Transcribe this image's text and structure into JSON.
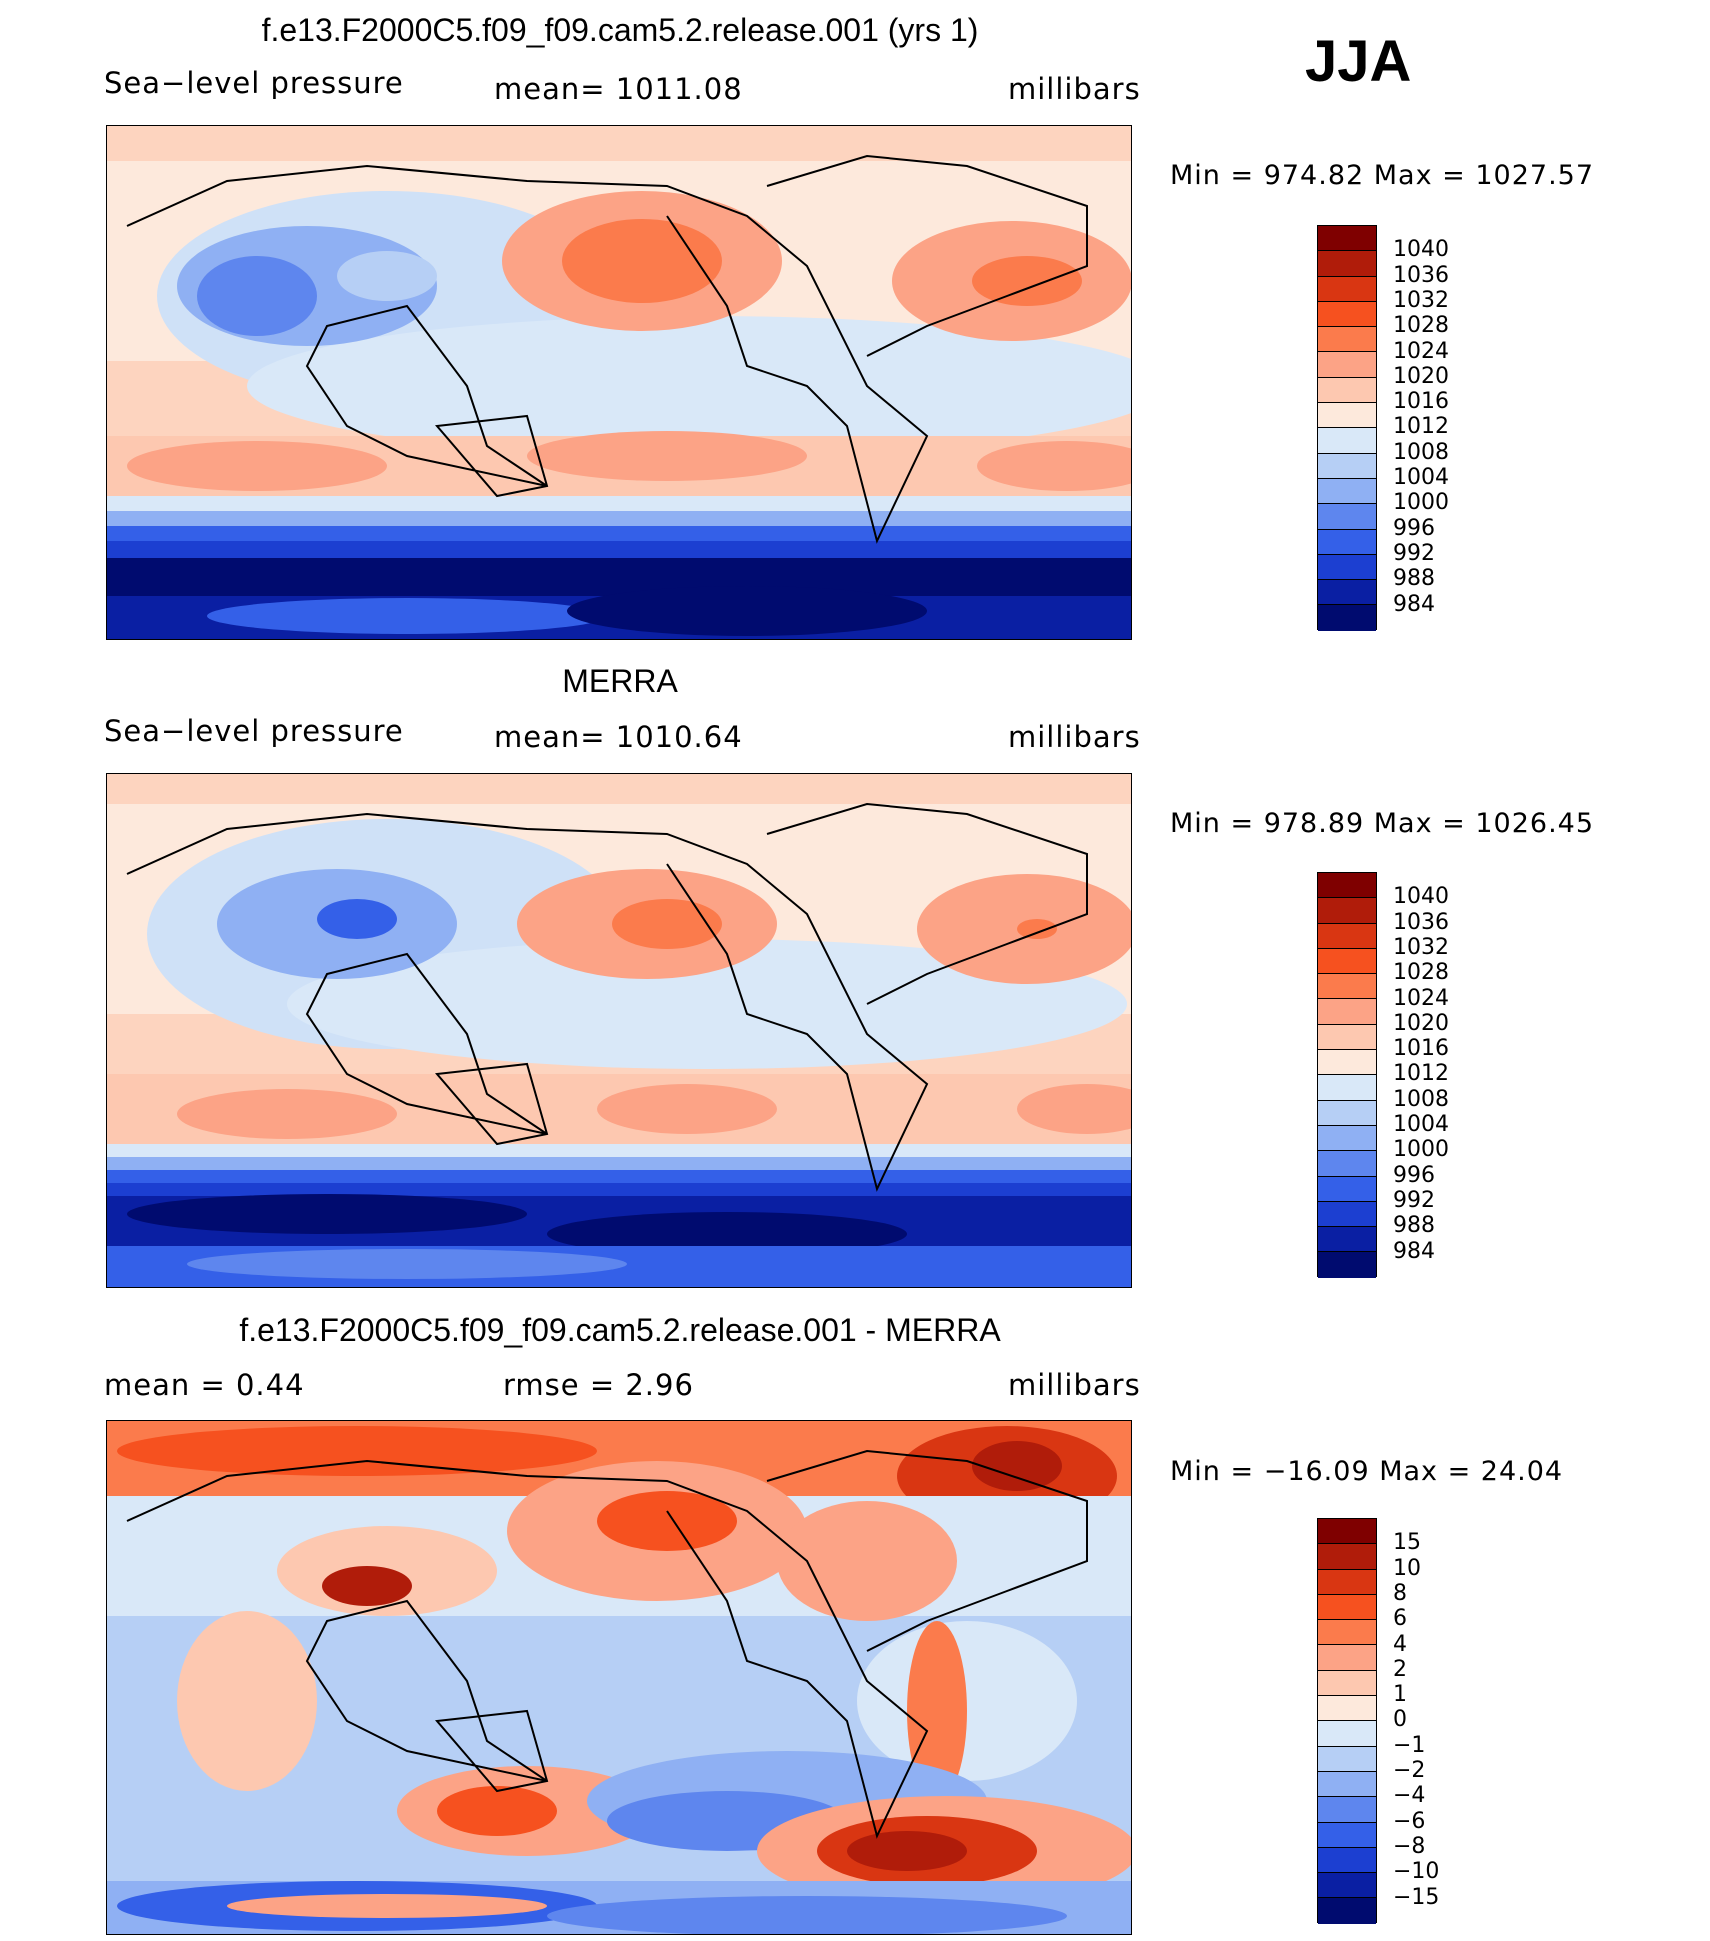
{
  "season": "JJA",
  "units": "millibars",
  "panels": [
    {
      "title": "f.e13.F2000C5.f09_f09.cam5.2.release.001 (yrs 1)",
      "left_label": "Sea−level pressure",
      "center_label": "mean=  1011.08",
      "right_label": "millibars",
      "minmax": "Min  =  974.82  Max  =  1027.57",
      "colorbar_labels": [
        "1040",
        "1036",
        "1032",
        "1028",
        "1024",
        "1020",
        "1016",
        "1012",
        "1008",
        "1004",
        "1000",
        "996",
        "992",
        "988",
        "984"
      ],
      "colorbar_colors": [
        "#7f0000",
        "#b01c0a",
        "#d93612",
        "#f6511f",
        "#fb7b4c",
        "#fca386",
        "#fdc8b0",
        "#fde9dc",
        "#d9e8f8",
        "#b6cff5",
        "#8fb0f3",
        "#5e86ee",
        "#3460e8",
        "#1c3fd1",
        "#0a1fa3",
        "#000b6f"
      ]
    },
    {
      "title": "MERRA",
      "left_label": "Sea−level pressure",
      "center_label": "mean=  1010.64",
      "right_label": "millibars",
      "minmax": "Min  =  978.89  Max  =  1026.45",
      "colorbar_labels": [
        "1040",
        "1036",
        "1032",
        "1028",
        "1024",
        "1020",
        "1016",
        "1012",
        "1008",
        "1004",
        "1000",
        "996",
        "992",
        "988",
        "984"
      ],
      "colorbar_colors": [
        "#7f0000",
        "#b01c0a",
        "#d93612",
        "#f6511f",
        "#fb7b4c",
        "#fca386",
        "#fdc8b0",
        "#fde9dc",
        "#d9e8f8",
        "#b6cff5",
        "#8fb0f3",
        "#5e86ee",
        "#3460e8",
        "#1c3fd1",
        "#0a1fa3",
        "#000b6f"
      ]
    },
    {
      "title": "f.e13.F2000C5.f09_f09.cam5.2.release.001 - MERRA",
      "left_label": "mean  =     0.44",
      "center_label": "rmse  =     2.96",
      "right_label": "millibars",
      "minmax": "Min  =  −16.09  Max  =    24.04",
      "colorbar_labels": [
        "15",
        "10",
        "8",
        "6",
        "4",
        "2",
        "1",
        "0",
        "−1",
        "−2",
        "−4",
        "−6",
        "−8",
        "−10",
        "−15"
      ],
      "colorbar_colors": [
        "#7f0000",
        "#b01c0a",
        "#d93612",
        "#f6511f",
        "#fb7b4c",
        "#fca386",
        "#fdc8b0",
        "#fde9dc",
        "#d9e8f8",
        "#b6cff5",
        "#8fb0f3",
        "#5e86ee",
        "#3460e8",
        "#1c3fd1",
        "#0a1fa3",
        "#000b6f"
      ]
    }
  ]
}
